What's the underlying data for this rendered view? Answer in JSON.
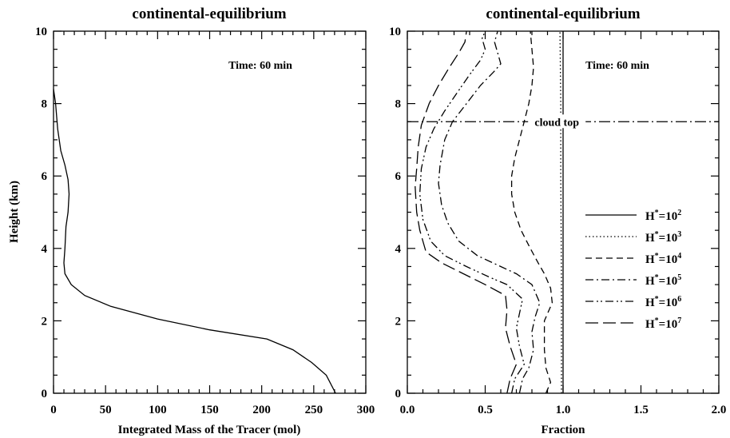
{
  "chart_data": [
    {
      "type": "line",
      "title": "continental-equilibrium",
      "xlabel": "Integrated Mass of the Tracer (mol)",
      "ylabel": "Height (km)",
      "xlim": [
        0,
        300
      ],
      "ylim": [
        0,
        10
      ],
      "xticks": [
        "0",
        "50",
        "100",
        "150",
        "200",
        "250",
        "300"
      ],
      "yticks": [
        "0",
        "2",
        "4",
        "6",
        "8",
        "10"
      ],
      "annotation": "Time: 60 min",
      "grid": false,
      "series": [
        {
          "dash": "solid",
          "points": [
            [
              271,
              0
            ],
            [
              262,
              0.5
            ],
            [
              248,
              0.85
            ],
            [
              230,
              1.2
            ],
            [
              205,
              1.5
            ],
            [
              150,
              1.75
            ],
            [
              100,
              2.05
            ],
            [
              55,
              2.4
            ],
            [
              30,
              2.7
            ],
            [
              17,
              3.0
            ],
            [
              11,
              3.3
            ],
            [
              10,
              3.6
            ],
            [
              11,
              4.0
            ],
            [
              12,
              4.6
            ],
            [
              14,
              5.0
            ],
            [
              15,
              5.5
            ],
            [
              14,
              5.9
            ],
            [
              11,
              6.3
            ],
            [
              7,
              6.7
            ],
            [
              4,
              7.3
            ],
            [
              2,
              8.0
            ],
            [
              0,
              8.4
            ]
          ]
        }
      ]
    },
    {
      "type": "line",
      "title": "continental-equilibrium",
      "xlabel": "Fraction",
      "ylabel": "",
      "xlim": [
        0,
        2
      ],
      "ylim": [
        0,
        10
      ],
      "xticks": [
        "0.0",
        "0.5",
        "1.0",
        "1.5",
        "2.0"
      ],
      "yticks": [
        "0",
        "2",
        "4",
        "6",
        "8",
        "10"
      ],
      "annotation": "Time: 60 min",
      "hline": {
        "y": 7.5,
        "label": "cloud top",
        "dash": "dashdot"
      },
      "legend_position": "right",
      "grid": false,
      "series": [
        {
          "name_base": "H",
          "name_sup": "*",
          "name_eq": "=10",
          "name_exp": "2",
          "dash": "solid",
          "points": [
            [
              1.0,
              0
            ],
            [
              1.0,
              10
            ]
          ]
        },
        {
          "name_base": "H",
          "name_sup": "*",
          "name_eq": "=10",
          "name_exp": "3",
          "dash": "dotted",
          "points": [
            [
              0.99,
              0
            ],
            [
              0.99,
              3
            ],
            [
              0.985,
              6
            ],
            [
              0.985,
              8
            ],
            [
              0.98,
              10
            ]
          ]
        },
        {
          "name_base": "H",
          "name_sup": "*",
          "name_eq": "=10",
          "name_exp": "4",
          "dash": "dashed",
          "points": [
            [
              0.89,
              0
            ],
            [
              0.92,
              0.3
            ],
            [
              0.89,
              0.7
            ],
            [
              0.88,
              1.2
            ],
            [
              0.88,
              2.0
            ],
            [
              0.93,
              2.5
            ],
            [
              0.92,
              2.9
            ],
            [
              0.88,
              3.3
            ],
            [
              0.84,
              3.6
            ],
            [
              0.79,
              4.0
            ],
            [
              0.73,
              4.5
            ],
            [
              0.69,
              5.0
            ],
            [
              0.67,
              5.5
            ],
            [
              0.67,
              6.0
            ],
            [
              0.69,
              6.5
            ],
            [
              0.72,
              7.0
            ],
            [
              0.75,
              7.5
            ],
            [
              0.78,
              8.0
            ],
            [
              0.8,
              8.5
            ],
            [
              0.81,
              9.0
            ],
            [
              0.8,
              9.5
            ],
            [
              0.79,
              10.0
            ]
          ]
        },
        {
          "name_base": "H",
          "name_sup": "*",
          "name_eq": "=10",
          "name_exp": "5",
          "dash": "dashdot",
          "points": [
            [
              0.72,
              0
            ],
            [
              0.74,
              0.4
            ],
            [
              0.78,
              0.7
            ],
            [
              0.81,
              1.2
            ],
            [
              0.8,
              1.7
            ],
            [
              0.82,
              2.1
            ],
            [
              0.85,
              2.5
            ],
            [
              0.8,
              3.0
            ],
            [
              0.7,
              3.3
            ],
            [
              0.6,
              3.5
            ],
            [
              0.45,
              3.8
            ],
            [
              0.33,
              4.2
            ],
            [
              0.26,
              4.7
            ],
            [
              0.22,
              5.2
            ],
            [
              0.2,
              5.8
            ],
            [
              0.21,
              6.3
            ],
            [
              0.24,
              7.0
            ],
            [
              0.29,
              7.5
            ],
            [
              0.38,
              8.0
            ],
            [
              0.47,
              8.5
            ],
            [
              0.56,
              8.9
            ],
            [
              0.6,
              9.1
            ],
            [
              0.58,
              9.4
            ],
            [
              0.56,
              9.7
            ],
            [
              0.58,
              10.0
            ]
          ]
        },
        {
          "name_base": "H",
          "name_sup": "*",
          "name_eq": "=10",
          "name_exp": "6",
          "dash": "dashdotdot",
          "points": [
            [
              0.67,
              0
            ],
            [
              0.69,
              0.4
            ],
            [
              0.75,
              0.8
            ],
            [
              0.72,
              1.3
            ],
            [
              0.7,
              1.8
            ],
            [
              0.72,
              2.2
            ],
            [
              0.74,
              2.6
            ],
            [
              0.64,
              3.0
            ],
            [
              0.53,
              3.2
            ],
            [
              0.38,
              3.5
            ],
            [
              0.24,
              3.8
            ],
            [
              0.15,
              4.2
            ],
            [
              0.1,
              4.8
            ],
            [
              0.08,
              5.5
            ],
            [
              0.09,
              6.2
            ],
            [
              0.12,
              6.8
            ],
            [
              0.17,
              7.3
            ],
            [
              0.24,
              7.8
            ],
            [
              0.32,
              8.3
            ],
            [
              0.4,
              8.8
            ],
            [
              0.47,
              9.2
            ],
            [
              0.5,
              9.5
            ],
            [
              0.48,
              9.8
            ],
            [
              0.5,
              10.0
            ]
          ]
        },
        {
          "name_base": "H",
          "name_sup": "*",
          "name_eq": "=10",
          "name_exp": "7",
          "dash": "longdash",
          "points": [
            [
              0.64,
              0
            ],
            [
              0.66,
              0.4
            ],
            [
              0.7,
              0.8
            ],
            [
              0.66,
              1.3
            ],
            [
              0.63,
              1.8
            ],
            [
              0.64,
              2.3
            ],
            [
              0.63,
              2.7
            ],
            [
              0.5,
              3.0
            ],
            [
              0.36,
              3.3
            ],
            [
              0.22,
              3.6
            ],
            [
              0.12,
              3.9
            ],
            [
              0.08,
              4.5
            ],
            [
              0.06,
              5.0
            ],
            [
              0.05,
              5.7
            ],
            [
              0.06,
              6.2
            ],
            [
              0.07,
              6.8
            ],
            [
              0.09,
              7.4
            ],
            [
              0.14,
              8.0
            ],
            [
              0.2,
              8.5
            ],
            [
              0.27,
              9.0
            ],
            [
              0.33,
              9.4
            ],
            [
              0.37,
              9.7
            ],
            [
              0.38,
              10.0
            ]
          ]
        }
      ]
    }
  ]
}
